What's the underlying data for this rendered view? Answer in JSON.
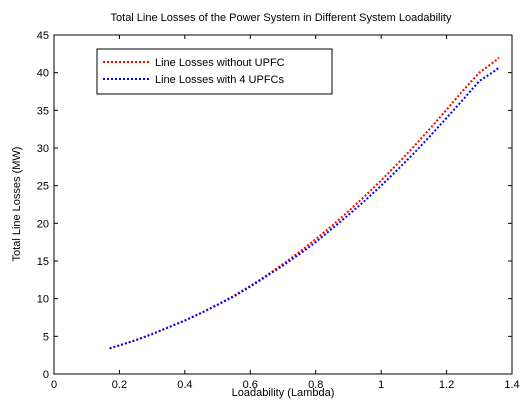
{
  "chart_data": {
    "type": "line",
    "title": "Total Line Losses of the Power System in Different System Loadability",
    "xlabel": "Loadability (Lambda)",
    "ylabel": "Total Line Losses (MW)",
    "xlim": [
      0,
      1.4
    ],
    "ylim": [
      0,
      45
    ],
    "xticks": [
      "0",
      "0.2",
      "0.4",
      "0.6",
      "0.8",
      "1",
      "1.2",
      "1.4"
    ],
    "yticks": [
      "0",
      "5",
      "10",
      "15",
      "20",
      "25",
      "30",
      "35",
      "40",
      "45"
    ],
    "grid": false,
    "legend_position": "top-left",
    "x": [
      0.17,
      0.2,
      0.25,
      0.3,
      0.35,
      0.4,
      0.45,
      0.5,
      0.55,
      0.6,
      0.65,
      0.7,
      0.75,
      0.8,
      0.85,
      0.9,
      0.95,
      1.0,
      1.05,
      1.1,
      1.15,
      1.2,
      1.25,
      1.3,
      1.35,
      1.36
    ],
    "series": [
      {
        "name": "Line Losses without UPFC",
        "color": "#ff0000",
        "values": [
          3.4,
          3.8,
          4.5,
          5.3,
          6.2,
          7.1,
          8.1,
          9.2,
          10.4,
          11.7,
          13.1,
          14.6,
          16.2,
          17.9,
          19.7,
          21.6,
          23.6,
          25.7,
          27.9,
          30.2,
          32.6,
          35.1,
          37.6,
          40.0,
          41.6,
          42.0
        ]
      },
      {
        "name": "Line Losses with 4 UPFCs",
        "color": "#0000ff",
        "values": [
          3.4,
          3.8,
          4.5,
          5.3,
          6.2,
          7.1,
          8.1,
          9.2,
          10.3,
          11.6,
          13.0,
          14.4,
          15.9,
          17.5,
          19.3,
          21.1,
          23.0,
          25.0,
          27.1,
          29.3,
          31.6,
          34.0,
          36.4,
          38.9,
          40.3,
          40.7
        ]
      }
    ]
  }
}
